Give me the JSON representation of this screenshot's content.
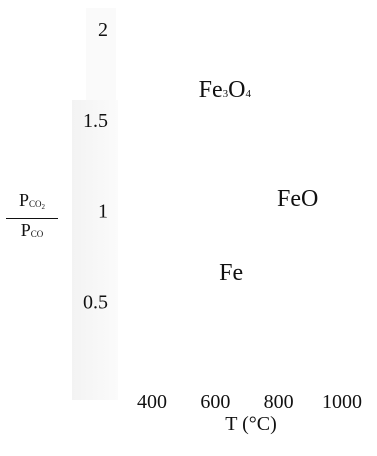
{
  "chart_data": {
    "type": "line",
    "title": "",
    "xlabel": "T (°C)",
    "ylabel": {
      "numerator_main": "P",
      "numerator_sub": "CO",
      "numerator_sub2": "2",
      "denominator_main": "P",
      "denominator_sub": "CO"
    },
    "x_ticks": [
      400,
      600,
      800,
      1000
    ],
    "x_tick_labels": [
      "400",
      "600",
      "800",
      "1000"
    ],
    "y_ticks": [
      0.5,
      1,
      1.5,
      2
    ],
    "y_tick_labels": [
      "0.5",
      "1",
      "1.5",
      "2"
    ],
    "xlim": [
      400,
      1000
    ],
    "ylim": [
      0,
      2
    ],
    "grid": false,
    "series": [],
    "regions": [
      {
        "label_main": "Fe",
        "label_sub1": "3",
        "label_mid": "O",
        "label_sub2": "4",
        "x": 630,
        "y": 1.67
      },
      {
        "label_main": "FeO",
        "x": 860,
        "y": 1.07
      },
      {
        "label_main": "Fe",
        "x": 650,
        "y": 0.66
      }
    ]
  }
}
